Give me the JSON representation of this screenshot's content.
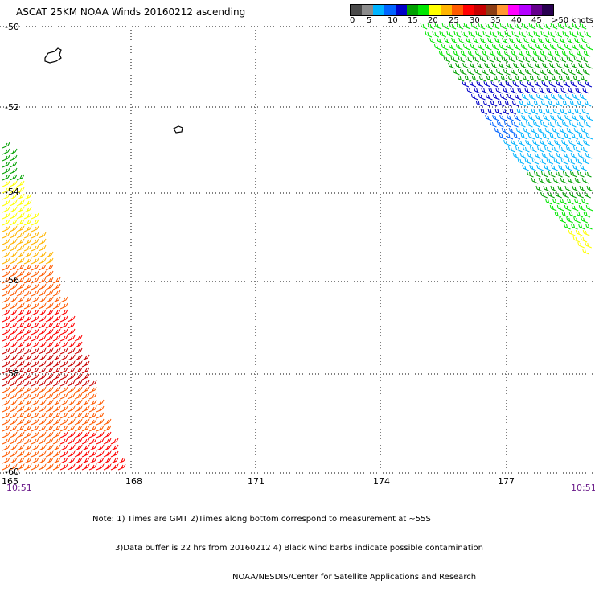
{
  "title": "ASCAT 25KM NOAA Winds 20160212 ascending",
  "colorbar": {
    "colors": [
      "#4a4a4a",
      "#8c8c8c",
      "#00b4ff",
      "#0064ff",
      "#0000c8",
      "#00a000",
      "#00e600",
      "#ffff00",
      "#ffb400",
      "#ff5a00",
      "#ff0000",
      "#c80000",
      "#8c3c14",
      "#ff9632",
      "#ff00ff",
      "#b400ff",
      "#64008c",
      "#280050"
    ],
    "labels": [
      "0",
      "5",
      "10",
      "15",
      "20",
      "25",
      "30",
      "35",
      "40",
      "45",
      ">50 knots"
    ]
  },
  "lat_labels": [
    "-50",
    "-52",
    "-54",
    "-56",
    "-58",
    "-60"
  ],
  "lon_labels": [
    "165",
    "168",
    "171",
    "174",
    "177"
  ],
  "time_left": "10:51",
  "time_right": "10:51",
  "notes": [
    "Note: 1) Times are GMT 2)Times along bottom correspond to measurement at ~55S",
    "3)Data buffer is 22 hrs from 20160212 4) Black wind barbs indicate possible contamination",
    "NOAA/NESDIS/Center for Satellite Applications and Research"
  ],
  "swaths": {
    "east": {
      "speed_bands": [
        "#00e600",
        "#00a000",
        "#0000c8",
        "#0064ff",
        "#00b4ff",
        "#00a000",
        "#00e600",
        "#ffff00"
      ]
    },
    "west": {
      "speed_bands": [
        "#00a000",
        "#ffff00",
        "#ffb400",
        "#ff5a00",
        "#ff0000",
        "#c80000",
        "#ff5a00",
        "#ff0000"
      ]
    }
  }
}
